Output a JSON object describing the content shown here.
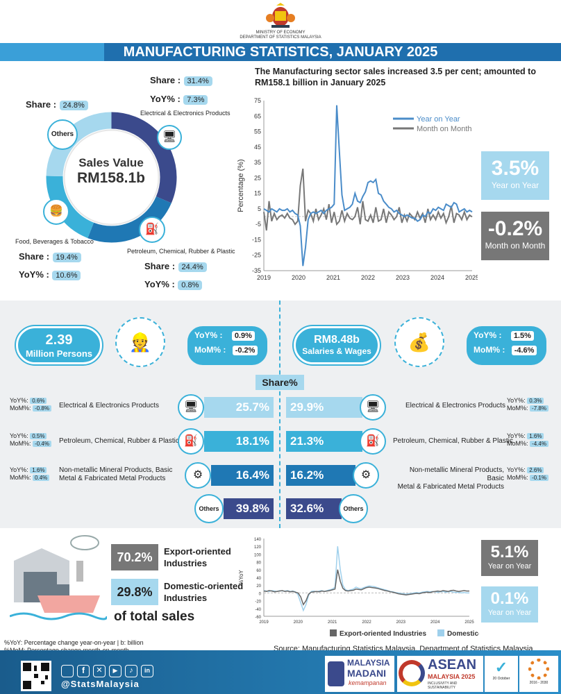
{
  "header": {
    "ministry_line1": "MINISTRY OF ECONOMY",
    "ministry_line2": "DEPARTMENT OF STATISTICS MALAYSIA",
    "title": "MANUFACTURING STATISTICS, JANUARY 2025"
  },
  "donut": {
    "center_title": "Sales Value",
    "center_value": "RM158.1b",
    "share_label": "Share :",
    "yoy_label": "YoY% :",
    "yoy_label2": "YoY% :",
    "segments": [
      {
        "name": "Electrical & Electronics Products",
        "share": "31.4%",
        "yoy": "7.3%",
        "color": "#3b4a8c"
      },
      {
        "name": "Petroleum, Chemical, Rubber & Plastic",
        "share": "24.4%",
        "yoy": "0.8%",
        "color": "#1f78b4"
      },
      {
        "name": "Food, Beverages & Tobacco",
        "share": "19.4%",
        "yoy": "10.6%",
        "color": "#3ab1d9"
      },
      {
        "name": "Others",
        "share": "24.8%",
        "color": "#a6d8ee"
      }
    ]
  },
  "sales_chart": {
    "headline": "The Manufacturing sector sales increased 3.5 per cent; amounted to RM158.1 billion in January 2025",
    "yoy_value": "3.5%",
    "yoy_caption": "Year on Year",
    "mom_value": "-0.2%",
    "mom_caption": "Month on Month"
  },
  "chart_data": [
    {
      "type": "line",
      "ylabel": "Percentage (%)",
      "ylim": [
        -35,
        75
      ],
      "yticks": [
        75,
        65,
        55,
        45,
        35,
        25,
        15,
        5,
        -5,
        -15,
        -25,
        -35
      ],
      "xticks": [
        "2019",
        "2020",
        "2021",
        "2022",
        "2023",
        "2024",
        "2025"
      ],
      "legend": "top-right",
      "series": [
        {
          "name": "Year on Year",
          "color": "#4a8cc9",
          "values": [
            5,
            4,
            3,
            5,
            4,
            3,
            5,
            4,
            4,
            5,
            3,
            4,
            2,
            1,
            -6,
            -32,
            -20,
            -2,
            2,
            3,
            2,
            3,
            4,
            2,
            4,
            5,
            6,
            8,
            72,
            42,
            14,
            4,
            5,
            6,
            8,
            15,
            10,
            9,
            13,
            16,
            22,
            23,
            22,
            24,
            15,
            14,
            10,
            8,
            6,
            5,
            3,
            4,
            2,
            1,
            0,
            1,
            0,
            -1,
            -1,
            -3,
            -2,
            1,
            0,
            3,
            2,
            5,
            4,
            6,
            5,
            4,
            8,
            7,
            6,
            9,
            8,
            3,
            4,
            5,
            3,
            4,
            3
          ]
        },
        {
          "name": "Month on Month",
          "color": "#777777",
          "values": [
            3,
            -9,
            10,
            -3,
            2,
            -2,
            0,
            1,
            -1,
            2,
            -1,
            -2,
            -5,
            -3,
            20,
            31,
            -3,
            4,
            2,
            -3,
            5,
            -2,
            1,
            5,
            -2,
            8,
            -4,
            3,
            -5,
            -3,
            4,
            -3,
            2,
            -1,
            -2,
            0,
            6,
            -5,
            10,
            -2,
            -3,
            1,
            -4,
            6,
            -3,
            -2,
            5,
            -4,
            3,
            1,
            -2,
            0,
            6,
            -4,
            1,
            -3,
            2,
            0,
            -2,
            3,
            -1,
            2,
            -4,
            5,
            -2,
            1,
            -2,
            3,
            -1,
            2,
            -4,
            0,
            7,
            -4,
            2,
            1,
            -2,
            3,
            -2,
            1,
            -0.2
          ]
        }
      ]
    },
    {
      "type": "line",
      "ylabel": "%YoY",
      "ylim": [
        -60,
        140
      ],
      "yticks": [
        140,
        120,
        100,
        80,
        60,
        40,
        20,
        0,
        -20,
        -40,
        -60
      ],
      "xticks": [
        "2019",
        "2020",
        "2021",
        "2022",
        "2023",
        "2024",
        "2025"
      ],
      "legend": "bottom",
      "series": [
        {
          "name": "Export-oriented Industries",
          "color": "#666666",
          "values": [
            5,
            4,
            6,
            5,
            3,
            4,
            5,
            6,
            4,
            5,
            3,
            4,
            2,
            0,
            -10,
            -30,
            -20,
            -3,
            2,
            3,
            4,
            3,
            5,
            4,
            5,
            6,
            8,
            10,
            60,
            30,
            12,
            6,
            5,
            6,
            7,
            10,
            9,
            8,
            11,
            14,
            15,
            14,
            13,
            12,
            10,
            8,
            6,
            5,
            3,
            2,
            0,
            -2,
            -3,
            -4,
            -5,
            -4,
            -3,
            -2,
            -1,
            -2,
            0,
            1,
            2,
            1,
            3,
            4,
            5,
            4,
            6,
            5,
            4,
            6,
            7,
            5,
            4,
            5,
            6,
            5,
            5
          ]
        },
        {
          "name": "Domestic-oriented Industries",
          "color": "#9fd0ec",
          "values": [
            6,
            5,
            4,
            6,
            5,
            4,
            6,
            5,
            5,
            6,
            4,
            5,
            3,
            -5,
            -25,
            -45,
            -30,
            -6,
            4,
            5,
            3,
            5,
            6,
            4,
            6,
            8,
            10,
            15,
            120,
            60,
            20,
            8,
            6,
            8,
            10,
            15,
            12,
            11,
            14,
            16,
            18,
            17,
            16,
            14,
            12,
            10,
            8,
            6,
            4,
            3,
            1,
            0,
            -1,
            -2,
            -3,
            -2,
            -1,
            0,
            1,
            0,
            2,
            3,
            4,
            3,
            4,
            3,
            2,
            3,
            4,
            2,
            3,
            4,
            2,
            1,
            2,
            0,
            1,
            0,
            0
          ]
        }
      ]
    }
  ],
  "employment": {
    "persons_value": "2.39",
    "persons_label": "Million Persons",
    "persons_yoy_label": "YoY%",
    "persons_yoy": "0.9%",
    "persons_mom_label": "MoM%",
    "persons_mom": "-0.2%",
    "salaries_value": "RM8.48b",
    "salaries_label": "Salaries & Wages",
    "salaries_yoy_label": "YoY%",
    "salaries_yoy": "1.5%",
    "salaries_mom_label": "MoM%",
    "salaries_mom": "-4.6%",
    "colon": ":",
    "share_title": "Share%"
  },
  "share_rows": [
    {
      "left_yoy": "0.6%",
      "left_mom": "-0.8%",
      "left_name": "Electrical & Electronics Products",
      "left_share": "25.7%",
      "right_share": "29.9%",
      "right_name": "Electrical & Electronics Products",
      "right_yoy": "0.3%",
      "right_mom": "-7.8%",
      "color": "#a6d8ee"
    },
    {
      "left_yoy": "0.5%",
      "left_mom": "-0.4%",
      "left_name": "Petroleum, Chemical, Rubber & Plastic",
      "left_share": "18.1%",
      "right_share": "21.3%",
      "right_name": "Petroleum, Chemical, Rubber & Plastic",
      "right_yoy": "1.6%",
      "right_mom": "-4.4%",
      "color": "#3ab1d9"
    },
    {
      "left_yoy": "1.6%",
      "left_mom": "0.4%",
      "left_name1": "Non-metallic Mineral Products, Basic",
      "left_name2": "Metal & Fabricated Metal Products",
      "left_share": "16.4%",
      "right_share": "16.2%",
      "right_name1": "Non-metallic Mineral Products, Basic",
      "right_name2": "Metal & Fabricated Metal Products",
      "right_yoy": "2.6%",
      "right_mom": "-0.1%",
      "color": "#1f78b4"
    },
    {
      "left_share": "39.8%",
      "right_share": "32.6%",
      "others": "Others",
      "color": "#3b4a8c"
    }
  ],
  "row_labels": {
    "yoy": "YoY%:",
    "mom": "MoM%:"
  },
  "trade": {
    "export_share": "70.2%",
    "export_label1": "Export-oriented",
    "export_label2": "Industries",
    "domestic_share": "29.8%",
    "domestic_label1": "Domestic-oriented",
    "domestic_label2": "Industries",
    "of_total": "of total sales",
    "yoy1_value": "5.1%",
    "yoy1_caption": "Year on Year",
    "yoy2_value": "0.1%",
    "yoy2_caption": "Year on Year"
  },
  "footer": {
    "note1": "%YoY: Percentage change year-on-year | b: billion",
    "note2": "%MoM: Percentage change month-on-month",
    "source": "Source: Manufacturing Statistics Malaysia, Department of Statistics Malaysia (DOSM)",
    "handle": "@StatsMalaysia",
    "madani1": "MALAYSIA",
    "madani2": "MADANI",
    "madani3": "kemampanan",
    "asean1": "ASEAN",
    "asean2": "MALAYSIA 2025",
    "asean3": "INCLUSIVITY AND SUSTAINABILITY",
    "oct": "20 October",
    "years": "2016 - 2030"
  }
}
